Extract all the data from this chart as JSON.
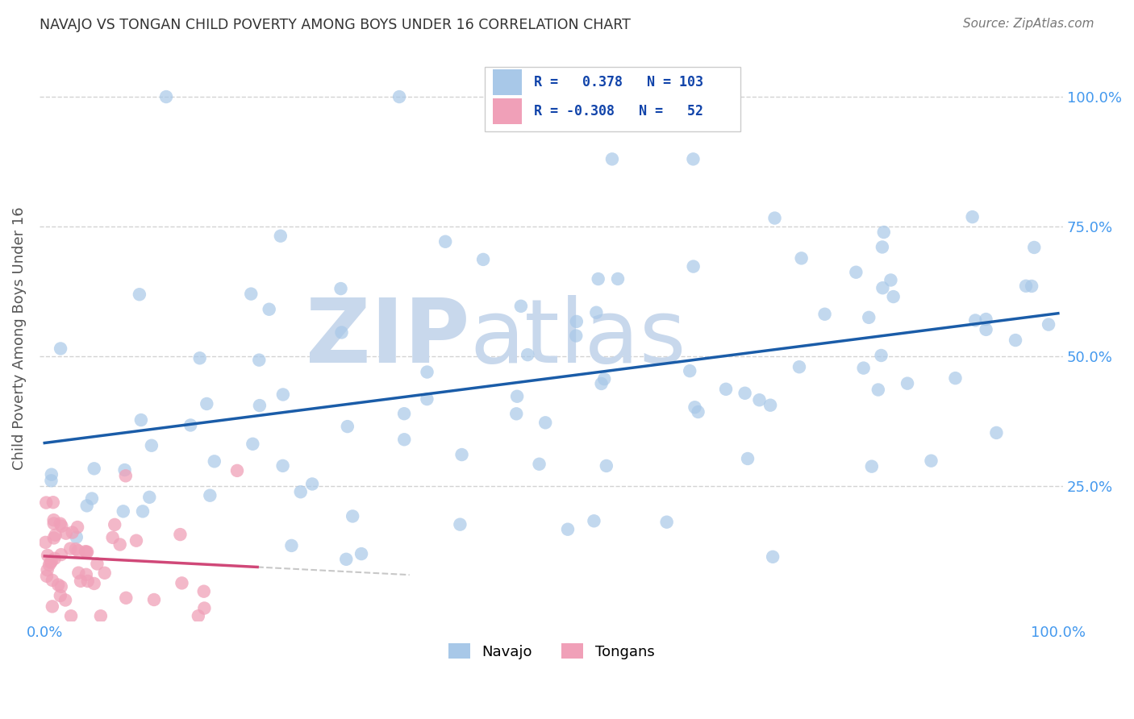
{
  "title": "NAVAJO VS TONGAN CHILD POVERTY AMONG BOYS UNDER 16 CORRELATION CHART",
  "source": "Source: ZipAtlas.com",
  "ylabel": "Child Poverty Among Boys Under 16",
  "navajo_R": 0.378,
  "navajo_N": 103,
  "tongan_R": -0.308,
  "tongan_N": 52,
  "navajo_color": "#A8C8E8",
  "tongan_color": "#F0A0B8",
  "navajo_line_color": "#1A5CA8",
  "tongan_line_color": "#D04878",
  "tongan_dash_color": "#C8C8C8",
  "background_color": "#FFFFFF",
  "grid_color": "#C8C8C8",
  "title_color": "#333333",
  "axis_label_color": "#555555",
  "tick_label_color": "#4499EE",
  "watermark_zip_color": "#D8E8F4",
  "watermark_atlas_color": "#C8DCF0",
  "legend_box_navajo": "#A8C8E8",
  "legend_box_tongan": "#F0A0B8",
  "corr_text_color": "#1144AA",
  "corr_box_edge": "#CCCCCC"
}
